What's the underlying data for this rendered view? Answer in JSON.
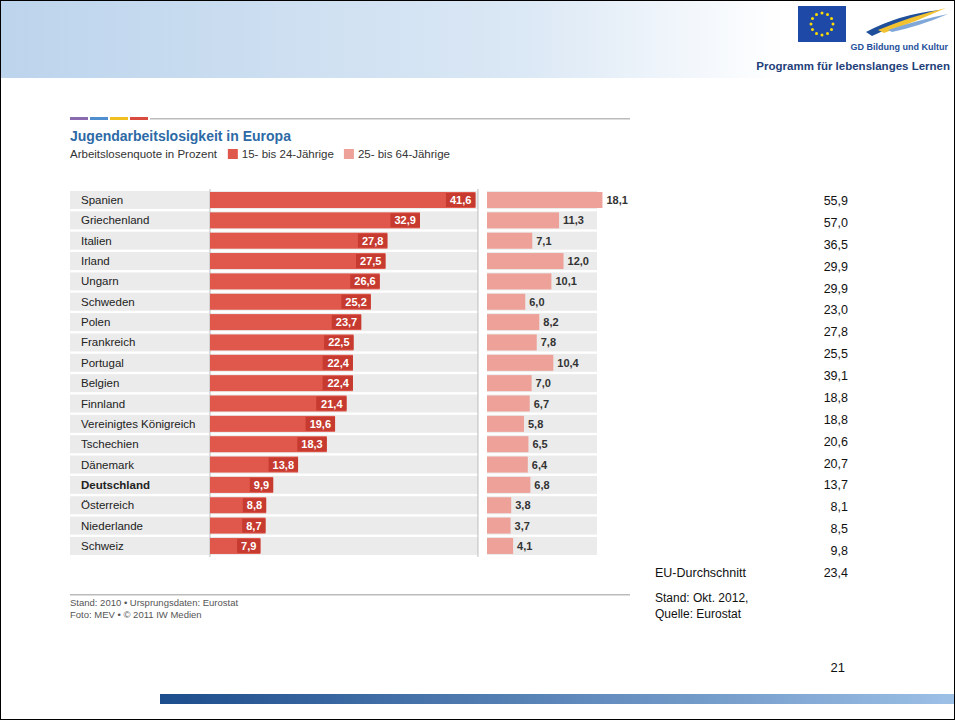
{
  "header": {
    "department": "GD Bildung und Kultur",
    "programme": "Programm für lebenslanges Lernen"
  },
  "chart_data": {
    "type": "bar",
    "orientation": "horizontal",
    "title": "Jugendarbeitslosigkeit in Europa",
    "subtitle": "Arbeitslosenquote in Prozent",
    "categories": [
      "Spanien",
      "Griechenland",
      "Italien",
      "Irland",
      "Ungarn",
      "Schweden",
      "Polen",
      "Frankreich",
      "Portugal",
      "Belgien",
      "Finnland",
      "Vereinigtes Königreich",
      "Tschechien",
      "Dänemark",
      "Deutschland",
      "Österreich",
      "Niederlande",
      "Schweiz"
    ],
    "series": [
      {
        "name": "15- bis 24-Jährige",
        "color": "#e0574b",
        "values": [
          41.6,
          32.9,
          27.8,
          27.5,
          26.6,
          25.2,
          23.7,
          22.5,
          22.4,
          22.4,
          21.4,
          19.6,
          18.3,
          13.8,
          9.9,
          8.8,
          8.7,
          7.9
        ],
        "value_labels": [
          "41,6",
          "32,9",
          "27,8",
          "27,5",
          "26,6",
          "25,2",
          "23,7",
          "22,5",
          "22,4",
          "22,4",
          "21,4",
          "19,6",
          "18,3",
          "13,8",
          "9,9",
          "8,8",
          "8,7",
          "7,9"
        ]
      },
      {
        "name": "25- bis 64-Jährige",
        "color": "#eda198",
        "values": [
          18.1,
          11.3,
          7.1,
          12.0,
          10.1,
          6.0,
          8.2,
          7.8,
          10.4,
          7.0,
          6.7,
          5.8,
          6.5,
          6.4,
          6.8,
          3.8,
          3.7,
          4.1
        ],
        "value_labels": [
          "18,1",
          "11,3",
          "7,1",
          "12,0",
          "10,1",
          "6,0",
          "8,2",
          "7,8",
          "10,4",
          "7,0",
          "6,7",
          "5,8",
          "6,5",
          "6,4",
          "6,8",
          "3,8",
          "3,7",
          "4,1"
        ]
      }
    ],
    "xlim": [
      0,
      42
    ],
    "tick_labels": false,
    "data_labels": true,
    "legend": "top",
    "annotations": [
      "Stand: 2010 • Ursprungsdaten: Eurostat",
      "Foto: MEV • © 2011 IW Medien"
    ]
  },
  "update_2012": {
    "values": [
      55.9,
      57.0,
      36.5,
      29.9,
      29.9,
      23.0,
      27.8,
      25.5,
      39.1,
      18.8,
      18.8,
      20.6,
      20.7,
      13.7,
      8.1,
      8.5,
      9.8
    ],
    "value_labels": [
      "55,9",
      "57,0",
      "36,5",
      "29,9",
      "29,9",
      "23,0",
      "27,8",
      "25,5",
      "39,1",
      "18,8",
      "18,8",
      "20,6",
      "20,7",
      "13,7",
      "8,1",
      "8,5",
      "9,8"
    ],
    "average": {
      "label": "EU-Durchschnitt",
      "value": 23.4,
      "value_label": "23,4"
    },
    "notes": [
      "Stand: Okt. 2012,",
      "Quelle: Eurostat"
    ]
  },
  "page_number": 21
}
